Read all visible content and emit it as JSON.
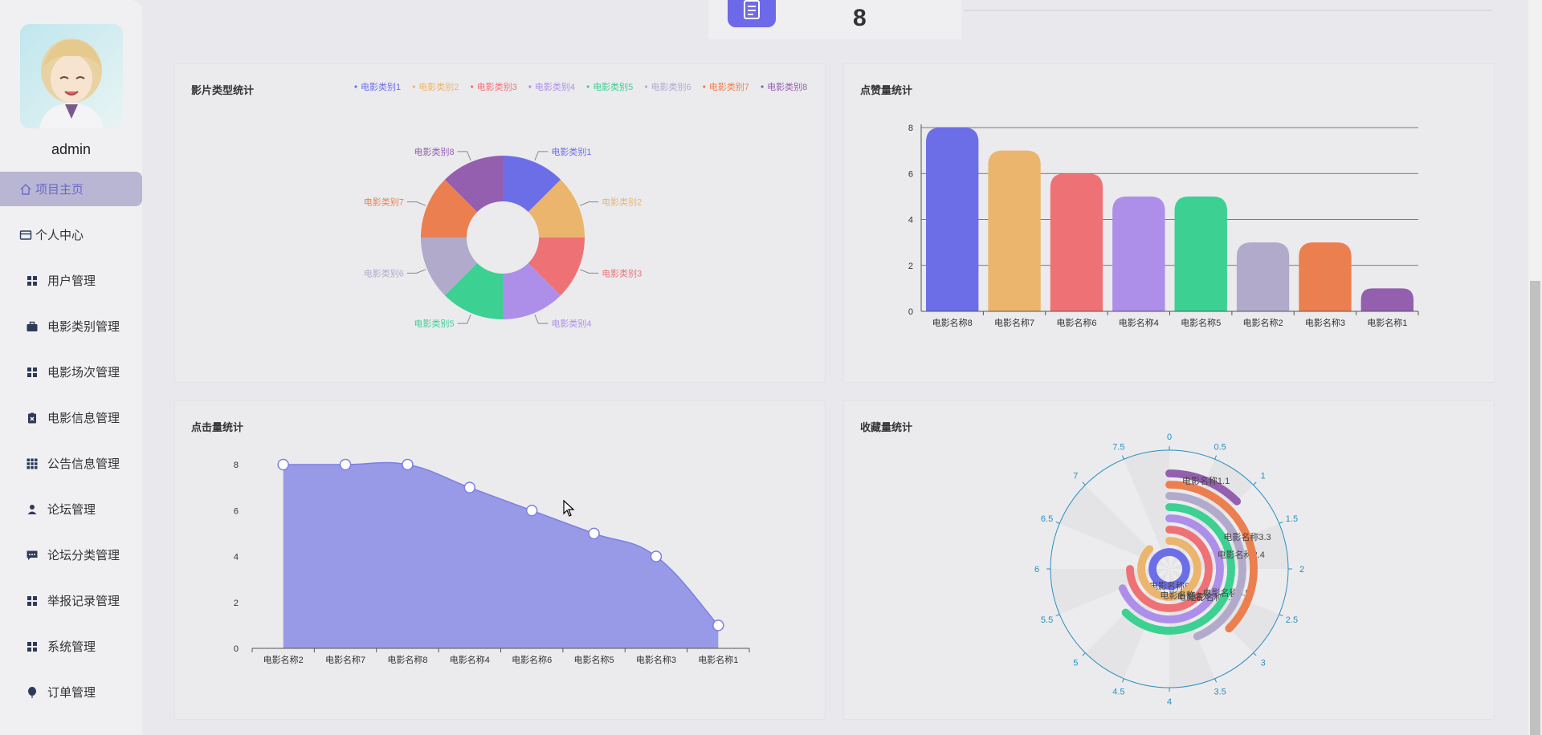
{
  "sidebar": {
    "username": "admin",
    "items": [
      {
        "label": "项目主页",
        "icon": "home-icon",
        "active": true
      },
      {
        "label": "个人中心",
        "icon": "credit-card-icon",
        "active": false
      },
      {
        "label": "用户管理",
        "icon": "grid-icon",
        "active": false
      },
      {
        "label": "电影类别管理",
        "icon": "briefcase-icon",
        "active": false
      },
      {
        "label": "电影场次管理",
        "icon": "grid-icon",
        "active": false
      },
      {
        "label": "电影信息管理",
        "icon": "clipboard-x-icon",
        "active": false
      },
      {
        "label": "公告信息管理",
        "icon": "grid-9-icon",
        "active": false
      },
      {
        "label": "论坛管理",
        "icon": "user-icon",
        "active": false
      },
      {
        "label": "论坛分类管理",
        "icon": "chat-icon",
        "active": false
      },
      {
        "label": "举报记录管理",
        "icon": "grid-icon",
        "active": false
      },
      {
        "label": "系统管理",
        "icon": "grid-icon",
        "active": false
      },
      {
        "label": "订单管理",
        "icon": "balloon-icon",
        "active": false
      }
    ]
  },
  "top_stat": {
    "value": "8",
    "icon": "document-icon"
  },
  "cards": {
    "genre": "影片类型统计",
    "likes": "点赞量统计",
    "clicks": "点击量统计",
    "favorites": "收藏量统计"
  },
  "chart_data": [
    {
      "type": "pie",
      "title": "影片类型统计",
      "donut": true,
      "legend_position": "top-right",
      "labels": [
        "电影类别1",
        "电影类别2",
        "电影类别3",
        "电影类别4",
        "电影类别5",
        "电影类别6",
        "电影类别7",
        "电影类别8"
      ],
      "values": [
        1,
        1,
        1,
        1,
        1,
        1,
        1,
        1
      ],
      "colors": [
        "#6c6ee8",
        "#ebb56d",
        "#ee7275",
        "#ad8fe9",
        "#3cd093",
        "#b2aacb",
        "#ec7f50",
        "#935fae"
      ]
    },
    {
      "type": "bar",
      "title": "点赞量统计",
      "categories": [
        "电影名称8",
        "电影名称7",
        "电影名称6",
        "电影名称4",
        "电影名称5",
        "电影名称2",
        "电影名称3",
        "电影名称1"
      ],
      "values": [
        8,
        7,
        6,
        5,
        5,
        3,
        3,
        1
      ],
      "colors": [
        "#6c6ee8",
        "#ebb56d",
        "#ee7275",
        "#ad8fe9",
        "#3cd093",
        "#b2aacb",
        "#ec7f50",
        "#935fae"
      ],
      "ylim": [
        0,
        8
      ],
      "yticks": [
        0,
        2,
        4,
        6,
        8
      ],
      "grid": true
    },
    {
      "type": "area",
      "title": "点击量统计",
      "categories": [
        "电影名称2",
        "电影名称7",
        "电影名称8",
        "电影名称4",
        "电影名称6",
        "电影名称5",
        "电影名称3",
        "电影名称1"
      ],
      "values": [
        8,
        8,
        8,
        7,
        6,
        5,
        4,
        1
      ],
      "color": "#7c7fe4",
      "ylim": [
        0,
        8
      ],
      "yticks": [
        0,
        2,
        4,
        6,
        8
      ],
      "grid": false
    },
    {
      "type": "polar-bar",
      "title": "收藏量统计",
      "angle_max": 8,
      "angle_ticks": [
        "0",
        "0.5",
        "1",
        "1.5",
        "2",
        "2.5",
        "3",
        "3.5",
        "4",
        "4.5",
        "5",
        "5.5",
        "6",
        "6.5",
        "7",
        "7.5"
      ],
      "categories": [
        "电影名称8",
        "电影名称6",
        "电影名称7",
        "电影名称4",
        "电影名称5",
        "电影名称2",
        "电影名称3",
        "电影名称1"
      ],
      "values": [
        8,
        7,
        6,
        5.5,
        5,
        3.5,
        3,
        1
      ],
      "bar_labels": [
        "电影名称8",
        "电影名称6",
        "电影名称7",
        "电影名称4.5",
        "电影名称5.5",
        "电影名称2.4",
        "电影名称3.3",
        "电影名称1.1"
      ],
      "colors": [
        "#6c6ee8",
        "#ebb56d",
        "#ee7275",
        "#ad8fe9",
        "#3cd093",
        "#b2aacb",
        "#ec7f50",
        "#935fae"
      ],
      "axis_color": "#2a8fbd"
    }
  ]
}
